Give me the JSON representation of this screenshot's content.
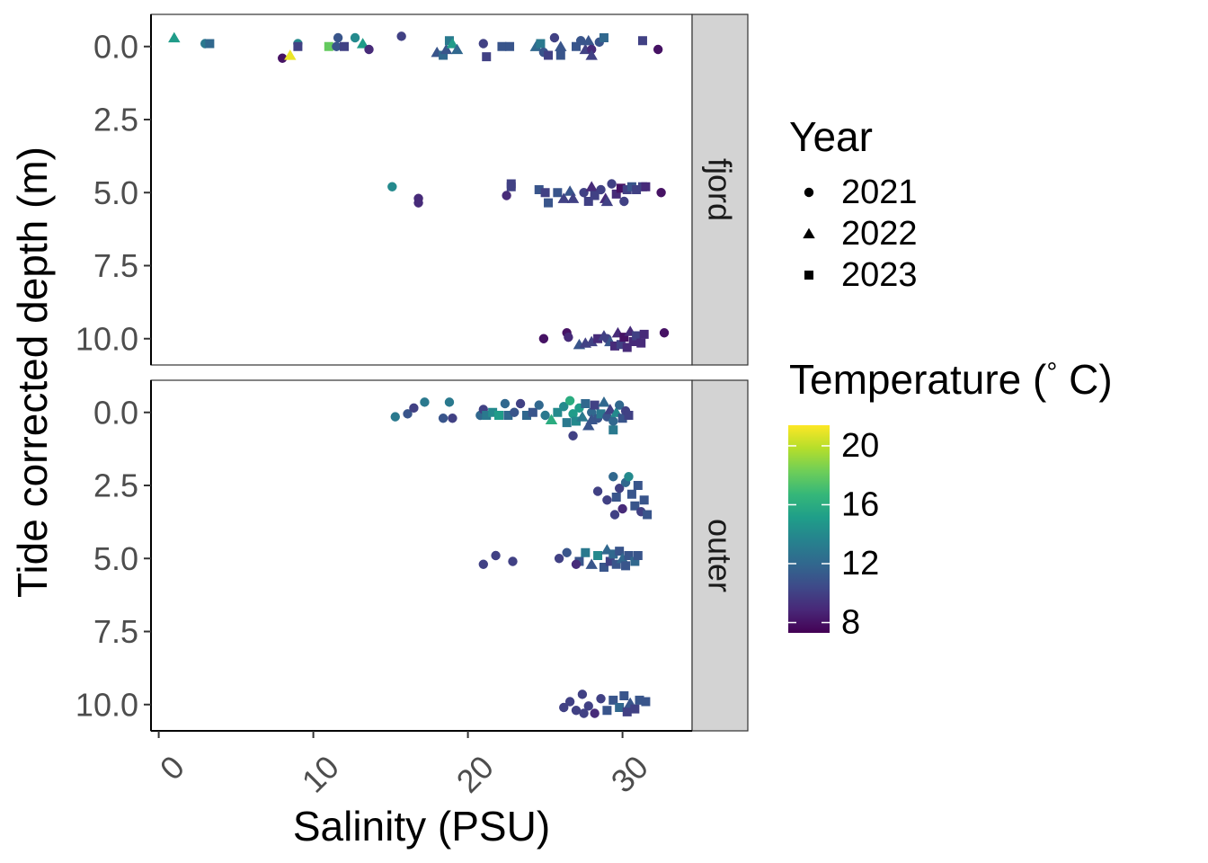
{
  "chart_data": {
    "type": "scatter",
    "xlabel": "Salinity (PSU)",
    "ylabel": "Tide corrected depth (m)",
    "xlim": [
      -0.5,
      34.5
    ],
    "ylim": [
      -1.1,
      10.9
    ],
    "y_reversed": true,
    "x_ticks": [
      "0",
      "10",
      "20",
      "30"
    ],
    "x_tick_values": [
      0,
      10,
      20,
      30
    ],
    "y_ticks": [
      "0.0",
      "2.5",
      "5.0",
      "7.5",
      "10.0"
    ],
    "y_tick_values": [
      0,
      2.5,
      5,
      7.5,
      10
    ],
    "grid": false,
    "facets": [
      {
        "label": "fjord",
        "points": [
          [
            1,
            -0.3,
            15,
            "2022"
          ],
          [
            3,
            -0.1,
            13,
            "2021"
          ],
          [
            3.3,
            -0.1,
            12,
            "2023"
          ],
          [
            8,
            0.4,
            8,
            "2021"
          ],
          [
            8.5,
            0.3,
            21,
            "2022"
          ],
          [
            9,
            -0.1,
            14,
            "2021"
          ],
          [
            9,
            0.0,
            10,
            "2023"
          ],
          [
            11,
            0.0,
            18,
            "2023"
          ],
          [
            11.5,
            0.0,
            11,
            "2021"
          ],
          [
            11.6,
            -0.3,
            11,
            "2021"
          ],
          [
            12,
            0.0,
            10,
            "2023"
          ],
          [
            12.7,
            -0.3,
            14,
            "2021"
          ],
          [
            13.2,
            -0.1,
            15,
            "2022"
          ],
          [
            13.6,
            0.1,
            9,
            "2021"
          ],
          [
            15.7,
            -0.35,
            10,
            "2021"
          ],
          [
            18,
            0.2,
            11,
            "2022"
          ],
          [
            18.4,
            0.3,
            12,
            "2023"
          ],
          [
            18.6,
            0.1,
            11,
            "2022"
          ],
          [
            18.8,
            -0.2,
            13,
            "2023"
          ],
          [
            19,
            -0.1,
            15,
            "2022"
          ],
          [
            19.3,
            0.1,
            12,
            "2022"
          ],
          [
            21,
            -0.1,
            10,
            "2021"
          ],
          [
            21.2,
            0.35,
            10,
            "2023"
          ],
          [
            22.2,
            0.0,
            11,
            "2023"
          ],
          [
            22.7,
            0.0,
            11,
            "2023"
          ],
          [
            24.4,
            0.0,
            12,
            "2022"
          ],
          [
            24.7,
            -0.1,
            13,
            "2023"
          ],
          [
            24.9,
            0.2,
            11,
            "2021"
          ],
          [
            25.2,
            0.3,
            10,
            "2023"
          ],
          [
            25.6,
            -0.3,
            10,
            "2021"
          ],
          [
            26,
            0.0,
            11,
            "2022"
          ],
          [
            26,
            0.3,
            11,
            "2023"
          ],
          [
            27,
            0.0,
            11,
            "2023"
          ],
          [
            27.3,
            -0.2,
            11,
            "2021"
          ],
          [
            27.6,
            0.1,
            10,
            "2022"
          ],
          [
            27.8,
            -0.2,
            11,
            "2022"
          ],
          [
            28,
            0.1,
            9,
            "2021"
          ],
          [
            28,
            0.3,
            10,
            "2022"
          ],
          [
            28.5,
            -0.15,
            11,
            "2021"
          ],
          [
            28.8,
            -0.3,
            12,
            "2023"
          ],
          [
            31.3,
            -0.2,
            10,
            "2023"
          ],
          [
            32.3,
            0.1,
            8,
            "2021"
          ],
          [
            15.1,
            4.8,
            14,
            "2021"
          ],
          [
            16.8,
            5.2,
            9,
            "2021"
          ],
          [
            16.8,
            5.35,
            9,
            "2021"
          ],
          [
            22.5,
            5.1,
            9,
            "2021"
          ],
          [
            22.8,
            4.8,
            10,
            "2023"
          ],
          [
            22.8,
            4.7,
            10,
            "2023"
          ],
          [
            24.6,
            4.9,
            11,
            "2023"
          ],
          [
            25,
            5.0,
            10,
            "2023"
          ],
          [
            25.2,
            5.35,
            11,
            "2023"
          ],
          [
            25.8,
            5.0,
            11,
            "2023"
          ],
          [
            26.2,
            5.2,
            10,
            "2022"
          ],
          [
            26.6,
            4.95,
            11,
            "2022"
          ],
          [
            26.8,
            5.2,
            10,
            "2022"
          ],
          [
            27.5,
            5.0,
            10,
            "2021"
          ],
          [
            27.8,
            5.3,
            10,
            "2023"
          ],
          [
            28,
            4.8,
            9,
            "2022"
          ],
          [
            28.2,
            5.1,
            10,
            "2023"
          ],
          [
            28.6,
            4.9,
            10,
            "2021"
          ],
          [
            28.9,
            5.2,
            9,
            "2022"
          ],
          [
            29,
            5.3,
            10,
            "2022"
          ],
          [
            29.3,
            4.7,
            10,
            "2021"
          ],
          [
            29.6,
            5.05,
            9,
            "2023"
          ],
          [
            29.9,
            4.85,
            8,
            "2023"
          ],
          [
            30.1,
            5.3,
            10,
            "2021"
          ],
          [
            30.3,
            4.9,
            10,
            "2023"
          ],
          [
            30.6,
            4.8,
            11,
            "2023"
          ],
          [
            30.9,
            4.9,
            10,
            "2023"
          ],
          [
            31.3,
            4.8,
            10,
            "2023"
          ],
          [
            31.5,
            4.8,
            9,
            "2023"
          ],
          [
            32.5,
            5.0,
            8,
            "2021"
          ],
          [
            24.9,
            10.0,
            8,
            "2021"
          ],
          [
            26.4,
            9.8,
            8,
            "2021"
          ],
          [
            26.5,
            9.95,
            9,
            "2021"
          ],
          [
            27.2,
            10.2,
            11,
            "2022"
          ],
          [
            27.6,
            10.15,
            10,
            "2022"
          ],
          [
            28,
            10.1,
            10,
            "2022"
          ],
          [
            28.4,
            10.0,
            9,
            "2023"
          ],
          [
            28.8,
            9.9,
            10,
            "2022"
          ],
          [
            29,
            10.0,
            10,
            "2021"
          ],
          [
            29.2,
            10.1,
            11,
            "2022"
          ],
          [
            29.5,
            10.25,
            9,
            "2023"
          ],
          [
            29.7,
            9.8,
            9,
            "2022"
          ],
          [
            29.9,
            10.2,
            10,
            "2023"
          ],
          [
            30.1,
            9.95,
            8,
            "2023"
          ],
          [
            30.3,
            10.3,
            9,
            "2023"
          ],
          [
            30.5,
            9.75,
            9,
            "2022"
          ],
          [
            30.7,
            10.1,
            9,
            "2023"
          ],
          [
            30.9,
            9.9,
            10,
            "2023"
          ],
          [
            31.2,
            10.15,
            9,
            "2023"
          ],
          [
            31.4,
            9.85,
            9,
            "2023"
          ],
          [
            32.7,
            9.8,
            8,
            "2021"
          ]
        ]
      },
      {
        "label": "outer",
        "points": [
          [
            15.3,
            0.15,
            13,
            "2021"
          ],
          [
            16.1,
            0.05,
            11,
            "2021"
          ],
          [
            16.5,
            -0.15,
            10,
            "2021"
          ],
          [
            17.2,
            -0.35,
            13,
            "2021"
          ],
          [
            18.4,
            0.2,
            11,
            "2021"
          ],
          [
            18.8,
            -0.35,
            13,
            "2021"
          ],
          [
            19,
            0.2,
            10,
            "2021"
          ],
          [
            20.8,
            0.1,
            12,
            "2021"
          ],
          [
            21,
            -0.1,
            10,
            "2021"
          ],
          [
            21.2,
            0.1,
            13,
            "2023"
          ],
          [
            21.6,
            0.0,
            14,
            "2023"
          ],
          [
            22,
            0.1,
            15,
            "2023"
          ],
          [
            22.4,
            -0.3,
            12,
            "2021"
          ],
          [
            22.6,
            0.1,
            12,
            "2023"
          ],
          [
            23,
            0.0,
            11,
            "2021"
          ],
          [
            23.4,
            -0.3,
            10,
            "2021"
          ],
          [
            23.8,
            0.1,
            12,
            "2023"
          ],
          [
            24.2,
            0.0,
            11,
            "2023"
          ],
          [
            24.6,
            -0.25,
            12,
            "2021"
          ],
          [
            25,
            0.1,
            13,
            "2021"
          ],
          [
            25.4,
            0.25,
            16,
            "2022"
          ],
          [
            25.8,
            0.0,
            14,
            "2023"
          ],
          [
            26.2,
            -0.2,
            14,
            "2021"
          ],
          [
            26.4,
            0.35,
            13,
            "2023"
          ],
          [
            26.6,
            -0.4,
            16,
            "2021"
          ],
          [
            26.8,
            0.05,
            15,
            "2021"
          ],
          [
            27,
            0.3,
            14,
            "2023"
          ],
          [
            27.2,
            -0.15,
            15,
            "2021"
          ],
          [
            27.4,
            0.15,
            13,
            "2022"
          ],
          [
            27.6,
            -0.3,
            12,
            "2023"
          ],
          [
            27.8,
            0.45,
            11,
            "2022"
          ],
          [
            28,
            0.0,
            12,
            "2021"
          ],
          [
            28.2,
            -0.25,
            10,
            "2023"
          ],
          [
            28.4,
            0.2,
            11,
            "2021"
          ],
          [
            28.6,
            0.05,
            13,
            "2023"
          ],
          [
            28.8,
            -0.35,
            12,
            "2022"
          ],
          [
            29,
            0.15,
            11,
            "2021"
          ],
          [
            29.2,
            -0.1,
            10,
            "2022"
          ],
          [
            29.4,
            0.3,
            12,
            "2021"
          ],
          [
            29.6,
            0.0,
            14,
            "2022"
          ],
          [
            29.8,
            -0.25,
            12,
            "2021"
          ],
          [
            30,
            0.2,
            11,
            "2023"
          ],
          [
            30.2,
            -0.05,
            10,
            "2021"
          ],
          [
            30.4,
            0.1,
            10,
            "2023"
          ],
          [
            26.8,
            0.8,
            10,
            "2021"
          ],
          [
            29.4,
            0.6,
            13,
            "2023"
          ],
          [
            28,
            0.25,
            11,
            "2022"
          ],
          [
            28.4,
            2.7,
            10,
            "2021"
          ],
          [
            29,
            3.0,
            10,
            "2021"
          ],
          [
            29.4,
            2.2,
            12,
            "2021"
          ],
          [
            29.6,
            2.9,
            11,
            "2023"
          ],
          [
            29.8,
            2.6,
            10,
            "2021"
          ],
          [
            30,
            3.3,
            9,
            "2021"
          ],
          [
            30.2,
            2.4,
            12,
            "2021"
          ],
          [
            30.4,
            2.2,
            14,
            "2021"
          ],
          [
            30.6,
            2.8,
            11,
            "2023"
          ],
          [
            30.8,
            3.2,
            11,
            "2023"
          ],
          [
            31,
            2.5,
            11,
            "2023"
          ],
          [
            31.2,
            3.4,
            10,
            "2021"
          ],
          [
            31.4,
            3.0,
            11,
            "2023"
          ],
          [
            31.6,
            3.5,
            11,
            "2023"
          ],
          [
            29.5,
            3.5,
            10,
            "2021"
          ],
          [
            21,
            5.2,
            10,
            "2021"
          ],
          [
            21.8,
            4.9,
            10,
            "2021"
          ],
          [
            22.9,
            5.1,
            10,
            "2021"
          ],
          [
            25.9,
            5.0,
            10,
            "2021"
          ],
          [
            26.4,
            4.8,
            11,
            "2021"
          ],
          [
            27.2,
            5.1,
            11,
            "2023"
          ],
          [
            27.6,
            4.8,
            13,
            "2023"
          ],
          [
            28,
            5.2,
            11,
            "2022"
          ],
          [
            28.4,
            4.9,
            14,
            "2023"
          ],
          [
            28.8,
            5.3,
            11,
            "2023"
          ],
          [
            29,
            4.7,
            12,
            "2022"
          ],
          [
            29.2,
            5.1,
            10,
            "2023"
          ],
          [
            29.4,
            4.85,
            12,
            "2023"
          ],
          [
            29.6,
            5.2,
            11,
            "2023"
          ],
          [
            29.8,
            4.75,
            11,
            "2023"
          ],
          [
            30,
            5.0,
            12,
            "2022"
          ],
          [
            30.2,
            5.25,
            11,
            "2023"
          ],
          [
            30.4,
            4.9,
            11,
            "2023"
          ],
          [
            30.8,
            5.1,
            12,
            "2023"
          ],
          [
            31,
            4.9,
            11,
            "2023"
          ],
          [
            27,
            5.2,
            9,
            "2021"
          ],
          [
            26.2,
            10.1,
            10,
            "2021"
          ],
          [
            26.6,
            9.9,
            10,
            "2021"
          ],
          [
            27,
            10.2,
            10,
            "2021"
          ],
          [
            27.4,
            9.65,
            10,
            "2021"
          ],
          [
            27.8,
            10.05,
            10,
            "2021"
          ],
          [
            28.2,
            10.3,
            9,
            "2021"
          ],
          [
            28.6,
            9.8,
            10,
            "2021"
          ],
          [
            29,
            10.2,
            11,
            "2023"
          ],
          [
            29.4,
            9.85,
            11,
            "2023"
          ],
          [
            29.8,
            10.1,
            12,
            "2023"
          ],
          [
            30.1,
            9.7,
            11,
            "2023"
          ],
          [
            30.3,
            10.25,
            10,
            "2023"
          ],
          [
            30.5,
            9.95,
            11,
            "2022"
          ],
          [
            30.8,
            10.15,
            10,
            "2023"
          ],
          [
            31.1,
            9.85,
            11,
            "2023"
          ],
          [
            31.5,
            9.9,
            11,
            "2023"
          ],
          [
            27.5,
            10.3,
            10,
            "2021"
          ]
        ]
      }
    ],
    "legend_shape": {
      "title": "Year",
      "entries": [
        {
          "label": "2021",
          "shape": "circle"
        },
        {
          "label": "2022",
          "shape": "triangle"
        },
        {
          "label": "2023",
          "shape": "square"
        }
      ]
    },
    "legend_color": {
      "title": "Temperature (° C)",
      "title_main": "Temperature (",
      "title_degree": "°",
      "title_unit": " C)",
      "min": 7.3,
      "max": 21.4,
      "ticks": [
        8,
        12,
        16,
        20
      ],
      "tick_labels": [
        "8",
        "12",
        "16",
        "20"
      ],
      "colormap": "viridis",
      "palette": [
        "#440154",
        "#482878",
        "#3e4a89",
        "#31688e",
        "#26828e",
        "#1f9e89",
        "#35b779",
        "#6ece58",
        "#b5de2b",
        "#fde725"
      ]
    },
    "legend_placement": "right"
  }
}
